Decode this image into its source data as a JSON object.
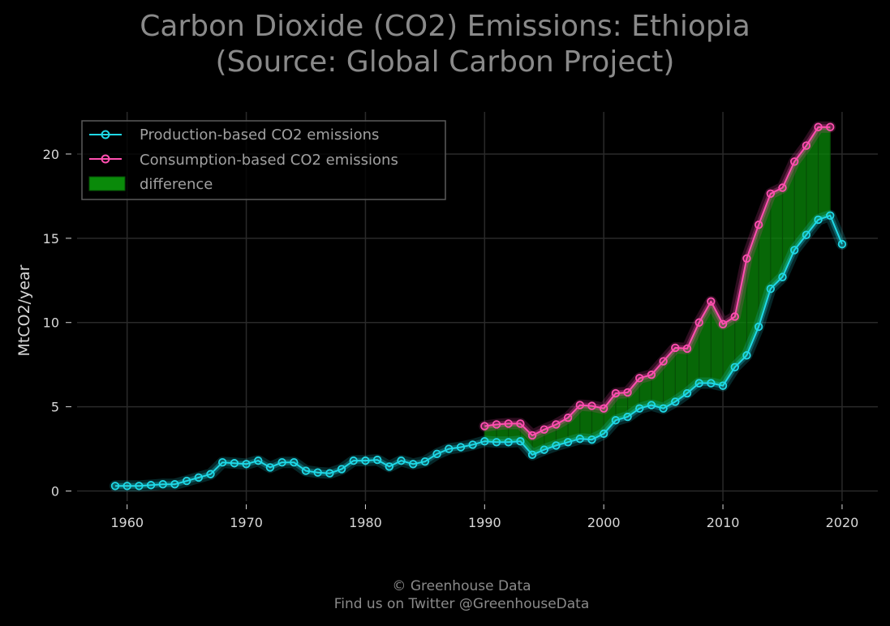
{
  "title_line1": "Carbon Dioxide (CO2) Emissions: Ethiopia",
  "title_line2": "(Source: Global Carbon Project)",
  "footer_line1": "© Greenhouse Data",
  "footer_line2": "Find us on Twitter @GreenhouseData",
  "colors": {
    "background": "#000000",
    "production": "#1fd8e6",
    "consumption": "#ff4fb0",
    "difference": "#0a8a0a",
    "grid": "#2a2a2a"
  },
  "chart_data": {
    "type": "line",
    "title": "Carbon Dioxide (CO2) Emissions: Ethiopia (Source: Global Carbon Project)",
    "xlabel": "",
    "ylabel": "MtCO2/year",
    "xlim": [
      1955.8,
      2023
    ],
    "ylim": [
      -0.6,
      22.5
    ],
    "x_ticks": [
      1960,
      1970,
      1980,
      1990,
      2000,
      2010,
      2020
    ],
    "y_ticks": [
      0,
      5,
      10,
      15,
      20
    ],
    "grid": true,
    "legend_position": "top-left",
    "series": [
      {
        "name": "Production-based CO2 emissions",
        "color": "#1fd8e6",
        "x": [
          1959,
          1960,
          1961,
          1962,
          1963,
          1964,
          1965,
          1966,
          1967,
          1968,
          1969,
          1970,
          1971,
          1972,
          1973,
          1974,
          1975,
          1976,
          1977,
          1978,
          1979,
          1980,
          1981,
          1982,
          1983,
          1984,
          1985,
          1986,
          1987,
          1988,
          1989,
          1990,
          1991,
          1992,
          1993,
          1994,
          1995,
          1996,
          1997,
          1998,
          1999,
          2000,
          2001,
          2002,
          2003,
          2004,
          2005,
          2006,
          2007,
          2008,
          2009,
          2010,
          2011,
          2012,
          2013,
          2014,
          2015,
          2016,
          2017,
          2018,
          2019,
          2020
        ],
        "y": [
          0.3,
          0.3,
          0.3,
          0.35,
          0.4,
          0.4,
          0.6,
          0.8,
          1.0,
          1.7,
          1.65,
          1.6,
          1.8,
          1.4,
          1.7,
          1.7,
          1.2,
          1.1,
          1.05,
          1.3,
          1.8,
          1.8,
          1.85,
          1.45,
          1.8,
          1.6,
          1.75,
          2.2,
          2.5,
          2.6,
          2.75,
          2.95,
          2.9,
          2.9,
          2.95,
          2.15,
          2.45,
          2.7,
          2.9,
          3.1,
          3.05,
          3.4,
          4.2,
          4.4,
          4.9,
          5.1,
          4.9,
          5.3,
          5.8,
          6.4,
          6.4,
          6.25,
          7.35,
          8.05,
          9.75,
          12.0,
          12.7,
          14.3,
          15.2,
          16.1,
          16.35,
          14.65
        ]
      },
      {
        "name": "Consumption-based CO2 emissions",
        "color": "#ff4fb0",
        "x": [
          1990,
          1991,
          1992,
          1993,
          1994,
          1995,
          1996,
          1997,
          1998,
          1999,
          2000,
          2001,
          2002,
          2003,
          2004,
          2005,
          2006,
          2007,
          2008,
          2009,
          2010,
          2011,
          2012,
          2013,
          2014,
          2015,
          2016,
          2017,
          2018,
          2019
        ],
        "y": [
          3.85,
          3.95,
          4.0,
          4.0,
          3.3,
          3.65,
          3.95,
          4.35,
          5.1,
          5.05,
          4.9,
          5.8,
          5.85,
          6.7,
          6.9,
          7.7,
          8.5,
          8.45,
          10.0,
          11.25,
          9.9,
          10.35,
          13.8,
          15.8,
          17.65,
          18.0,
          19.55,
          20.5,
          21.6,
          21.6
        ]
      }
    ],
    "difference_label": "difference"
  }
}
